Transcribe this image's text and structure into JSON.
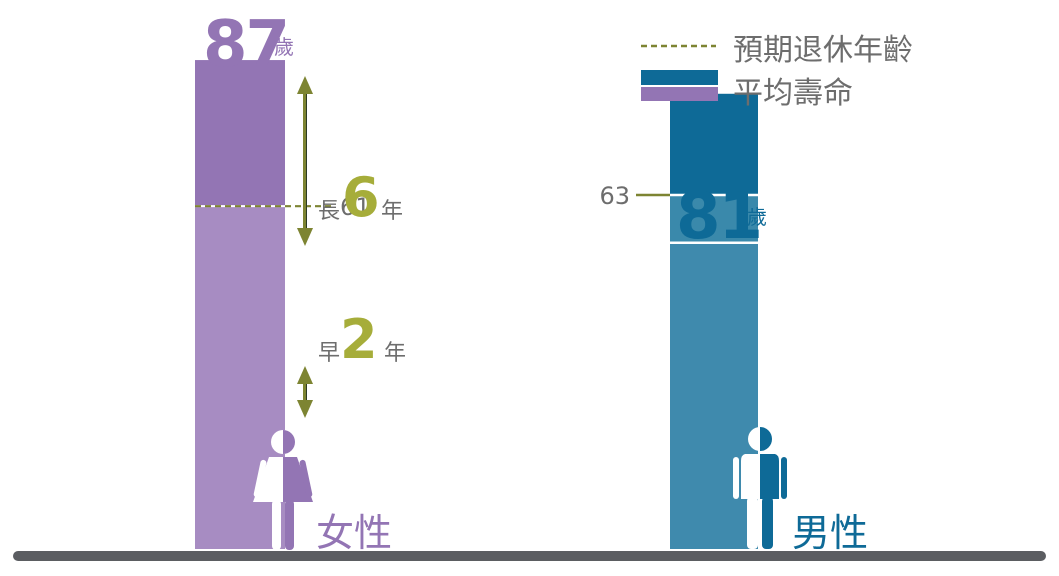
{
  "chart_data": {
    "type": "bar",
    "title": "",
    "xlabel": "",
    "ylabel": "",
    "ylim": [
      0,
      90
    ],
    "grid": false,
    "legend_position": "top-right",
    "categories": [
      "女性",
      "男性"
    ],
    "series": [
      {
        "name": "平均壽命",
        "values": [
          87,
          81
        ]
      },
      {
        "name": "預期退休年齡",
        "values": [
          61,
          63
        ]
      }
    ],
    "value_labels": [
      {
        "number": "87",
        "unit": "歲"
      },
      {
        "number": "81",
        "unit": "歲"
      }
    ],
    "retirement_labels": [
      "61",
      "63"
    ],
    "annotations": [
      {
        "prefix": "長",
        "number": "6",
        "suffix": "年"
      },
      {
        "prefix": "早",
        "number": "2",
        "suffix": "年"
      }
    ],
    "legend": {
      "retirement": "預期退休年齡",
      "lifespan": "平均壽命"
    }
  },
  "colors": {
    "female_lifespan": "#9375b4",
    "female_lower": "#a78cc2",
    "male_lifespan": "#0e6a97",
    "male_mid": "#3a89ab",
    "male_lower": "#3f8aad",
    "olive": "#7d8432",
    "olive_text": "#a6ad3a",
    "female_text": "#9375b4",
    "male_text": "#0e6a97",
    "gray_text": "#6d6d6d",
    "ground": "#5b5d61"
  },
  "icons": [
    "female-figure-icon",
    "male-figure-icon",
    "double-arrow-icon"
  ]
}
